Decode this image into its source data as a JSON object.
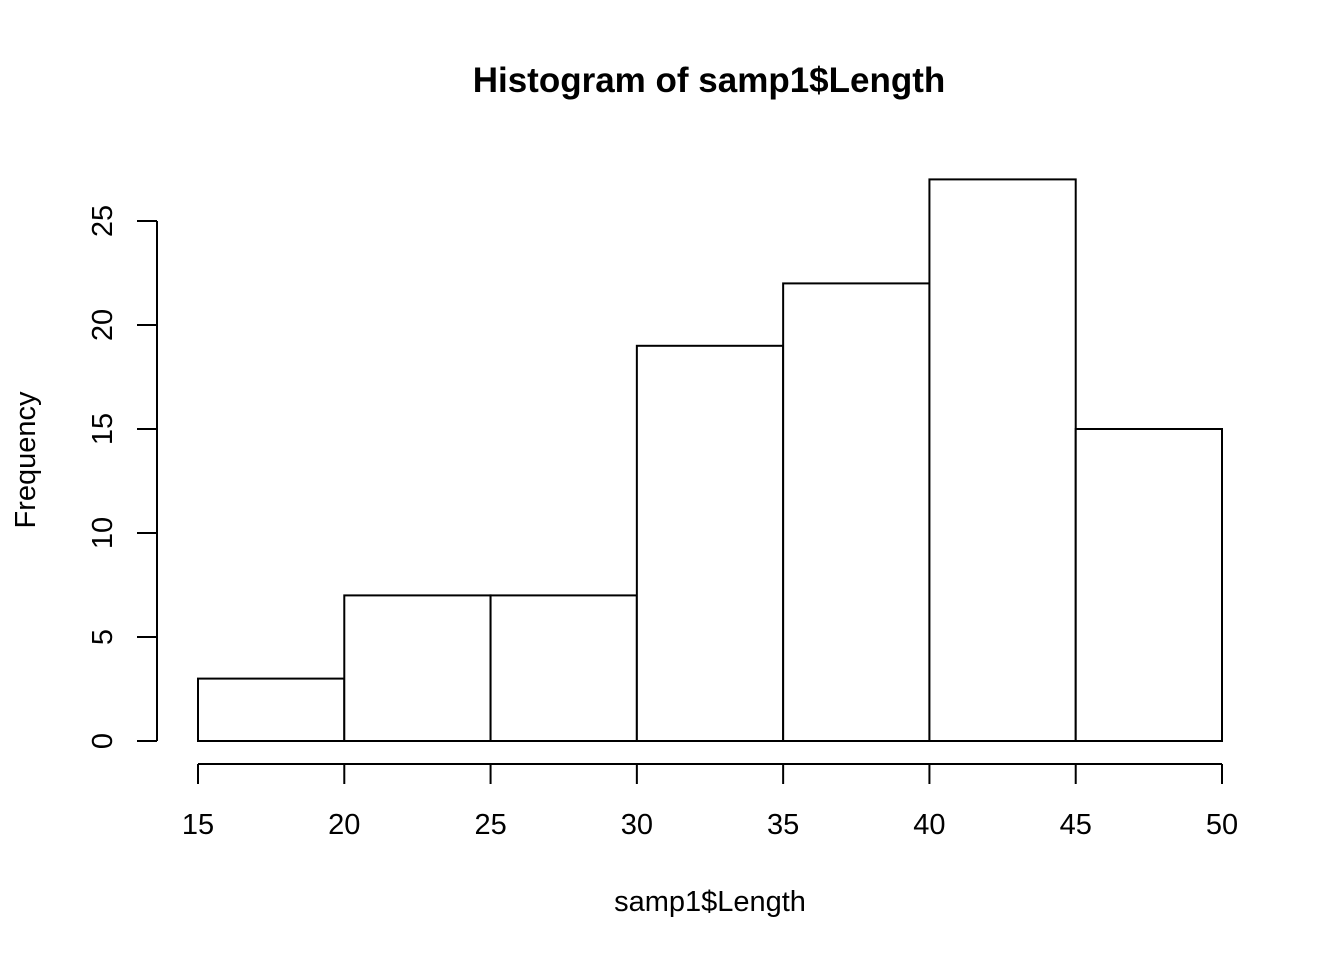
{
  "chart_data": {
    "type": "bar",
    "title": "Histogram of samp1$Length",
    "xlabel": "samp1$Length",
    "ylabel": "Frequency",
    "bins": [
      {
        "start": 15,
        "end": 20,
        "count": 3
      },
      {
        "start": 20,
        "end": 25,
        "count": 7
      },
      {
        "start": 25,
        "end": 30,
        "count": 7
      },
      {
        "start": 30,
        "end": 35,
        "count": 19
      },
      {
        "start": 35,
        "end": 40,
        "count": 22
      },
      {
        "start": 40,
        "end": 45,
        "count": 27
      },
      {
        "start": 45,
        "end": 50,
        "count": 15
      }
    ],
    "xlim": [
      15,
      50
    ],
    "ylim": [
      0,
      25
    ],
    "x_ticks": [
      "15",
      "20",
      "25",
      "30",
      "35",
      "40",
      "45",
      "50"
    ],
    "y_ticks": [
      "0",
      "5",
      "10",
      "15",
      "20",
      "25"
    ],
    "grid": false,
    "legend": "none"
  }
}
